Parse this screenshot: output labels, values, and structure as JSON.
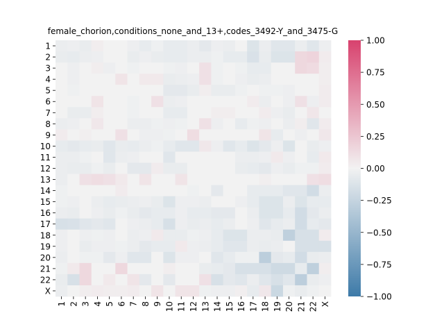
{
  "chart_data": {
    "type": "heatmap",
    "title": "female_chorion,conditions_none_and_13+,codes_3492-Y_and_3475-G",
    "xlabel": "",
    "ylabel": "",
    "row_labels": [
      "1",
      "2",
      "3",
      "4",
      "5",
      "6",
      "7",
      "8",
      "9",
      "10",
      "11",
      "12",
      "13",
      "14",
      "15",
      "16",
      "17",
      "18",
      "19",
      "20",
      "21",
      "22",
      "X"
    ],
    "col_labels": [
      "1",
      "2",
      "3",
      "4",
      "5",
      "6",
      "7",
      "8",
      "9",
      "10",
      "11",
      "12",
      "13",
      "14",
      "15",
      "16",
      "17",
      "18",
      "19",
      "20",
      "21",
      "22",
      "X"
    ],
    "colorbar": {
      "vmin": -1.0,
      "vmax": 1.0,
      "ticks": [
        1.0,
        0.75,
        0.5,
        0.25,
        0.0,
        -0.25,
        -0.5,
        -0.75,
        -1.0
      ],
      "tick_labels": [
        "1.00",
        "0.75",
        "0.50",
        "0.25",
        "0.00",
        "−0.25",
        "−0.50",
        "−0.75",
        "−1.00"
      ],
      "colors": {
        "negative": "#3d7aa8",
        "center": "#f2f2f2",
        "positive": "#d8426e"
      }
    },
    "values": [
      [
        -0.04,
        -0.03,
        -0.05,
        0.03,
        0.0,
        0.0,
        -0.03,
        -0.06,
        -0.02,
        -0.06,
        -0.06,
        -0.04,
        -0.08,
        -0.03,
        -0.04,
        0.0,
        -0.12,
        -0.04,
        -0.1,
        -0.1,
        -0.04,
        -0.1,
        -0.03
      ],
      [
        -0.05,
        -0.06,
        -0.04,
        -0.03,
        0.0,
        0.0,
        -0.05,
        -0.03,
        -0.05,
        -0.06,
        -0.06,
        -0.04,
        -0.04,
        -0.02,
        -0.06,
        -0.06,
        -0.14,
        -0.05,
        -0.12,
        -0.12,
        0.15,
        0.17,
        0.04
      ],
      [
        0.0,
        -0.03,
        0.0,
        0.03,
        -0.03,
        0.0,
        -0.02,
        0.0,
        0.0,
        -0.02,
        -0.03,
        0.0,
        0.1,
        -0.02,
        0.0,
        -0.02,
        -0.06,
        -0.06,
        0.0,
        0.0,
        0.15,
        0.13,
        0.03
      ],
      [
        0.0,
        -0.03,
        0.0,
        0.0,
        0.0,
        0.08,
        0.0,
        0.05,
        0.05,
        -0.05,
        -0.04,
        -0.03,
        0.1,
        -0.02,
        0.0,
        -0.03,
        -0.05,
        -0.04,
        0.0,
        0.0,
        0.0,
        0.0,
        0.03
      ],
      [
        0.0,
        -0.02,
        0.0,
        0.0,
        0.0,
        0.0,
        0.0,
        0.0,
        0.0,
        -0.08,
        -0.08,
        -0.05,
        0.03,
        -0.05,
        -0.05,
        -0.02,
        0.0,
        -0.02,
        -0.02,
        -0.03,
        0.0,
        0.0,
        0.04
      ],
      [
        0.0,
        0.0,
        0.0,
        0.08,
        0.0,
        0.0,
        -0.02,
        0.0,
        0.1,
        -0.04,
        -0.03,
        0.0,
        0.0,
        0.0,
        0.0,
        0.0,
        0.04,
        -0.04,
        0.0,
        -0.03,
        0.1,
        -0.03,
        0.04
      ],
      [
        0.0,
        -0.05,
        -0.05,
        0.03,
        0.0,
        0.0,
        -0.02,
        0.0,
        0.0,
        -0.06,
        -0.06,
        0.0,
        0.0,
        0.03,
        0.03,
        0.0,
        0.0,
        0.04,
        -0.03,
        -0.05,
        0.0,
        0.07,
        0.0
      ],
      [
        -0.04,
        -0.03,
        0.0,
        0.06,
        0.0,
        0.0,
        -0.04,
        -0.04,
        -0.02,
        -0.03,
        -0.02,
        0.0,
        0.1,
        -0.03,
        0.0,
        -0.06,
        -0.02,
        -0.03,
        0.0,
        -0.04,
        0.03,
        -0.1,
        0.04
      ],
      [
        0.04,
        0.0,
        0.02,
        0.0,
        0.0,
        0.1,
        0.0,
        -0.03,
        -0.03,
        -0.02,
        0.0,
        0.12,
        0.0,
        0.0,
        0.0,
        0.0,
        0.0,
        0.08,
        -0.06,
        0.0,
        -0.03,
        0.0,
        0.06
      ],
      [
        -0.06,
        -0.08,
        -0.06,
        -0.05,
        -0.1,
        -0.05,
        -0.06,
        -0.04,
        -0.02,
        -0.06,
        -0.1,
        -0.1,
        0.06,
        -0.03,
        -0.1,
        -0.06,
        -0.12,
        -0.08,
        -0.03,
        -0.12,
        0.0,
        -0.05,
        -0.03
      ],
      [
        -0.04,
        -0.04,
        -0.02,
        0.0,
        -0.1,
        -0.04,
        -0.03,
        0.0,
        0.0,
        -0.1,
        0.0,
        0.0,
        0.0,
        0.0,
        0.0,
        -0.04,
        -0.04,
        -0.03,
        0.05,
        -0.03,
        0.0,
        -0.06,
        0.05
      ],
      [
        -0.04,
        -0.05,
        -0.05,
        -0.02,
        -0.05,
        0.0,
        -0.08,
        -0.08,
        0.04,
        -0.05,
        -0.05,
        0.0,
        0.0,
        0.0,
        0.0,
        -0.05,
        -0.06,
        -0.08,
        -0.03,
        -0.05,
        -0.02,
        -0.02,
        0.04
      ],
      [
        -0.04,
        0.0,
        0.1,
        0.12,
        0.1,
        0.05,
        0.0,
        0.08,
        0.0,
        0.0,
        0.08,
        0.0,
        0.0,
        0.0,
        0.0,
        0.0,
        0.0,
        0.02,
        0.0,
        0.0,
        0.0,
        0.1,
        0.12
      ],
      [
        -0.02,
        0.0,
        0.0,
        0.0,
        0.0,
        0.04,
        0.0,
        0.0,
        0.0,
        0.0,
        0.0,
        -0.02,
        0.0,
        -0.08,
        0.0,
        0.0,
        -0.06,
        -0.06,
        -0.06,
        -0.1,
        -0.1,
        -0.18,
        -0.04
      ],
      [
        -0.02,
        -0.03,
        0.0,
        -0.04,
        -0.06,
        -0.05,
        -0.04,
        -0.03,
        -0.05,
        -0.12,
        -0.03,
        -0.03,
        -0.04,
        0.0,
        0.0,
        -0.03,
        -0.06,
        -0.12,
        -0.12,
        -0.04,
        -0.12,
        -0.06,
        -0.06
      ],
      [
        -0.04,
        -0.05,
        0.0,
        -0.03,
        -0.05,
        -0.02,
        -0.05,
        -0.08,
        -0.06,
        -0.06,
        -0.03,
        -0.06,
        -0.06,
        -0.08,
        -0.08,
        0.0,
        -0.04,
        -0.12,
        -0.12,
        -0.06,
        -0.18,
        -0.08,
        -0.04
      ],
      [
        -0.15,
        -0.14,
        -0.1,
        -0.08,
        -0.1,
        0.0,
        -0.03,
        -0.04,
        -0.06,
        -0.15,
        -0.03,
        -0.05,
        -0.04,
        -0.06,
        -0.04,
        0.0,
        -0.03,
        -0.1,
        -0.06,
        -0.04,
        -0.18,
        -0.06,
        -0.08
      ],
      [
        -0.03,
        0.0,
        -0.03,
        -0.02,
        -0.03,
        0.0,
        -0.04,
        -0.03,
        0.05,
        -0.05,
        -0.05,
        -0.02,
        -0.03,
        -0.06,
        -0.12,
        -0.12,
        -0.04,
        -0.04,
        -0.05,
        -0.28,
        -0.15,
        -0.15,
        0.04
      ],
      [
        -0.03,
        0.0,
        -0.05,
        -0.03,
        -0.03,
        -0.02,
        -0.04,
        -0.08,
        -0.06,
        -0.06,
        0.05,
        -0.03,
        -0.04,
        -0.06,
        -0.1,
        -0.1,
        -0.04,
        -0.05,
        -0.04,
        0.0,
        -0.15,
        -0.15,
        -0.15
      ],
      [
        -0.04,
        0.0,
        -0.02,
        -0.02,
        -0.08,
        -0.03,
        -0.1,
        -0.1,
        0.0,
        -0.12,
        -0.03,
        -0.03,
        0.0,
        -0.1,
        -0.06,
        -0.02,
        -0.02,
        -0.3,
        -0.08,
        -0.06,
        -0.18,
        -0.05,
        -0.04
      ],
      [
        -0.02,
        0.05,
        0.15,
        0.0,
        0.0,
        0.15,
        0.0,
        0.0,
        0.0,
        0.03,
        0.0,
        0.0,
        -0.05,
        -0.06,
        -0.08,
        -0.15,
        -0.15,
        -0.15,
        -0.2,
        -0.2,
        -0.06,
        -0.28,
        0.03
      ],
      [
        -0.05,
        -0.15,
        0.15,
        0.0,
        0.05,
        0.0,
        0.08,
        -0.08,
        0.0,
        -0.08,
        0.0,
        0.0,
        0.1,
        -0.15,
        -0.08,
        -0.1,
        -0.04,
        -0.1,
        -0.15,
        -0.1,
        -0.3,
        -0.05,
        -0.03
      ],
      [
        -0.04,
        0.0,
        0.03,
        0.04,
        0.03,
        0.03,
        0.04,
        0.0,
        0.08,
        0.0,
        0.08,
        0.08,
        -0.02,
        -0.03,
        -0.03,
        0.02,
        -0.06,
        0.06,
        -0.22,
        -0.02,
        -0.05,
        -0.02,
        0.0
      ]
    ]
  }
}
